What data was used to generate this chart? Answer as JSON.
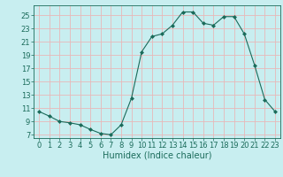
{
  "x": [
    0,
    1,
    2,
    3,
    4,
    5,
    6,
    7,
    8,
    9,
    10,
    11,
    12,
    13,
    14,
    15,
    16,
    17,
    18,
    19,
    20,
    21,
    22,
    23
  ],
  "y": [
    10.5,
    9.8,
    9.0,
    8.8,
    8.5,
    7.8,
    7.2,
    7.0,
    8.5,
    12.5,
    19.5,
    21.8,
    22.2,
    23.5,
    25.5,
    25.5,
    23.8,
    23.5,
    24.8,
    24.8,
    22.2,
    17.5,
    12.3,
    10.5
  ],
  "line_color": "#1a6b5a",
  "marker": "D",
  "marker_size": 2.0,
  "bg_color": "#c8eef0",
  "grid_color": "#e8b8b8",
  "xlabel": "Humidex (Indice chaleur)",
  "xlim": [
    -0.5,
    23.5
  ],
  "ylim": [
    6.5,
    26.5
  ],
  "yticks": [
    7,
    9,
    11,
    13,
    15,
    17,
    19,
    21,
    23,
    25
  ],
  "xticks": [
    0,
    1,
    2,
    3,
    4,
    5,
    6,
    7,
    8,
    9,
    10,
    11,
    12,
    13,
    14,
    15,
    16,
    17,
    18,
    19,
    20,
    21,
    22,
    23
  ],
  "tick_color": "#1a6b5a",
  "label_fontsize": 6.0,
  "xlabel_fontsize": 7.0
}
